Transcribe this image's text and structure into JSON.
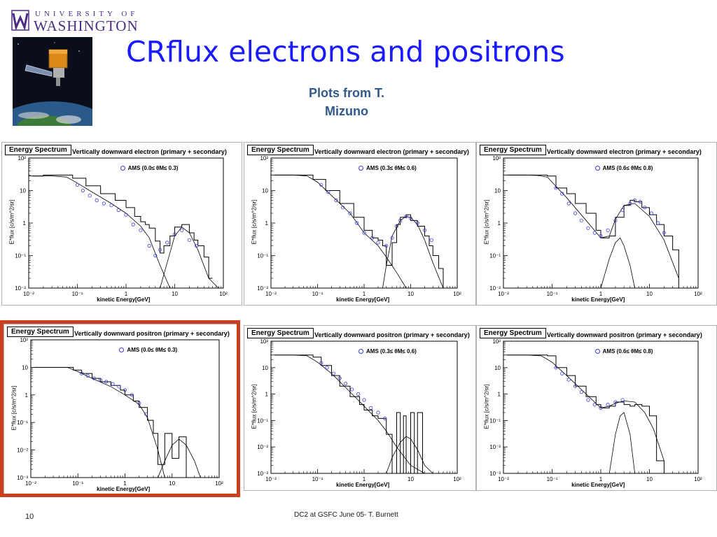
{
  "header": {
    "logo_top": "UNIVERSITY OF",
    "logo_bottom": "WASHINGTON",
    "title": "CRflux electrons and positrons",
    "subtitle_line1": "Plots from T.",
    "subtitle_line2": "Mizuno"
  },
  "footer": {
    "page_number": "10",
    "text": "DC2 at GSFC June 05- T. Burnett"
  },
  "colors": {
    "title": "#1a1aff",
    "subtitle": "#2f5a8a",
    "highlight": "#c8401e",
    "ams_points": "#3b3bd8"
  },
  "icons": {
    "logo": "uw-w-mark",
    "image": "glast-satellite-over-earth"
  },
  "chart_data": [
    {
      "type": "line",
      "label": "Energy Spectrum",
      "title": "Vertically downward electron (primary + secondary)",
      "legend": "AMS (0.0≤ θM≤ 0.3)",
      "xlabel": "kinetic Energy[GeV]",
      "ylabel": "E*flux [c/s/m^2/sr]",
      "xscale": "log",
      "yscale": "log",
      "xlim": [
        0.01,
        100
      ],
      "ylim": [
        0.01,
        100
      ],
      "xticks": [
        "10⁻²",
        "10⁻¹",
        "1",
        "10",
        "10²"
      ],
      "yticks": [
        "10⁻²",
        "10⁻¹",
        "1",
        "10",
        "10²"
      ],
      "series": [
        {
          "role": "histogram",
          "x": [
            0.012,
            0.02,
            0.04,
            0.08,
            0.15,
            0.3,
            0.6,
            1.0,
            1.5,
            2.0,
            2.5,
            3.0,
            4.0,
            5.0,
            6.0,
            8.0,
            10.0,
            14.0,
            20.0,
            25.0,
            30.0,
            40.0,
            50.0
          ],
          "y": [
            28,
            30,
            30,
            24,
            14,
            8,
            5,
            3,
            1.6,
            1.1,
            0.9,
            0.7,
            0.28,
            0.12,
            0.2,
            0.4,
            0.75,
            0.9,
            0.5,
            0.3,
            0.2,
            0.09,
            0.02
          ]
        },
        {
          "role": "primary",
          "x": [
            0.01,
            0.03,
            0.06,
            0.1,
            0.2,
            0.5,
            1,
            2,
            3,
            5,
            8,
            10
          ],
          "y": [
            28,
            28,
            26,
            17,
            9,
            4,
            2,
            0.8,
            0.35,
            0.05,
            0.01,
            0.01
          ]
        },
        {
          "role": "secondary",
          "x": [
            5,
            7,
            10,
            14,
            20,
            30,
            50,
            80
          ],
          "y": [
            0.01,
            0.06,
            0.4,
            0.75,
            0.5,
            0.15,
            0.02,
            0.01
          ]
        },
        {
          "role": "ams",
          "x": [
            0.1,
            0.13,
            0.18,
            0.25,
            0.35,
            0.5,
            0.7,
            1.0,
            1.4,
            2.0,
            3.0,
            4.0,
            5.0,
            7.0,
            10.0,
            14.0,
            20.0,
            28.0
          ],
          "y": [
            15,
            10,
            7,
            5,
            4,
            3.5,
            2.5,
            1.8,
            0.9,
            0.6,
            0.2,
            0.1,
            0.15,
            0.25,
            0.45,
            0.6,
            0.3,
            0.2
          ]
        }
      ]
    },
    {
      "type": "line",
      "label": "Energy Spectrum",
      "title": "Vertically downward electron (primary + secondary)",
      "legend": "AMS (0.3≤ θM≤ 0.6)",
      "xlabel": "kinetic Energy[GeV]",
      "ylabel": "E*flux [c/s/m^2/sr]",
      "xscale": "log",
      "yscale": "log",
      "xlim": [
        0.01,
        100
      ],
      "ylim": [
        0.01,
        100
      ],
      "xticks": [
        "10⁻²",
        "10⁻¹",
        "1",
        "10",
        "10²"
      ],
      "yticks": [
        "10⁻²",
        "10⁻¹",
        "1",
        "10",
        "10²"
      ],
      "series": [
        {
          "role": "histogram",
          "x": [
            0.012,
            0.02,
            0.04,
            0.08,
            0.15,
            0.3,
            0.6,
            1.0,
            1.5,
            2.0,
            2.5,
            3.0,
            4.0,
            5.0,
            6.0,
            8.0,
            10.0,
            14.0,
            20.0,
            25.0,
            30.0,
            40.0,
            50.0
          ],
          "y": [
            30,
            30,
            30,
            22,
            10,
            4,
            1.5,
            0.6,
            0.35,
            0.3,
            0.2,
            0.05,
            0.25,
            0.9,
            1.5,
            1.8,
            1.2,
            0.8,
            0.4,
            0.2,
            0.1,
            0.04,
            0.01
          ]
        },
        {
          "role": "primary",
          "x": [
            0.01,
            0.03,
            0.06,
            0.1,
            0.2,
            0.5,
            1,
            2,
            3,
            5,
            8,
            10
          ],
          "y": [
            30,
            30,
            28,
            18,
            7,
            2,
            0.5,
            0.2,
            0.09,
            0.03,
            0.01,
            0.01
          ]
        },
        {
          "role": "secondary",
          "x": [
            2.5,
            3,
            4,
            6,
            8,
            10,
            14,
            20,
            30,
            50
          ],
          "y": [
            0.01,
            0.05,
            0.4,
            1.2,
            1.6,
            1.5,
            0.9,
            0.3,
            0.06,
            0.01
          ]
        },
        {
          "role": "ams",
          "x": [
            0.12,
            0.17,
            0.25,
            0.35,
            0.5,
            0.7,
            1.0,
            1.5,
            2.0,
            3.0,
            4.0,
            5.0,
            6.0,
            8.0,
            10.0,
            14.0,
            20.0,
            28.0
          ],
          "y": [
            15,
            9,
            5,
            3,
            2,
            1,
            0.5,
            0.35,
            0.25,
            0.2,
            0.35,
            0.8,
            1.2,
            1.6,
            1.4,
            1.0,
            0.6,
            0.3
          ]
        }
      ]
    },
    {
      "type": "line",
      "label": "Energy Spectrum",
      "title": "Vertically downward electron (primary + secondary)",
      "legend": "AMS (0.6≤ θM≤ 0.8)",
      "xlabel": "kinetic Energy[GeV]",
      "ylabel": "E*flux [c/s/m^2/sr]",
      "xscale": "log",
      "yscale": "log",
      "xlim": [
        0.01,
        100
      ],
      "ylim": [
        0.01,
        100
      ],
      "xticks": [
        "10⁻²",
        "10⁻¹",
        "1",
        "10",
        "10²"
      ],
      "yticks": [
        "10⁻²",
        "10⁻¹",
        "1",
        "10",
        "10²"
      ],
      "series": [
        {
          "role": "histogram",
          "x": [
            0.012,
            0.02,
            0.04,
            0.08,
            0.12,
            0.2,
            0.3,
            0.5,
            0.8,
            1.0,
            1.5,
            2.0,
            3.0,
            4.0,
            5.0,
            7.0,
            10.0,
            14.0,
            20.0,
            30.0,
            40.0
          ],
          "y": [
            30,
            30,
            30,
            28,
            12,
            8,
            4,
            2,
            0.6,
            0.35,
            0.4,
            1.5,
            3.5,
            5,
            4.5,
            3,
            1.8,
            0.9,
            0.4,
            0.15,
            0.01
          ]
        },
        {
          "role": "primary",
          "x": [
            0.01,
            0.03,
            0.05,
            0.08,
            0.1,
            0.2,
            0.5,
            1,
            1.5,
            2,
            3,
            5,
            10,
            20,
            40
          ],
          "y": [
            30,
            30,
            29,
            26,
            18,
            6,
            1.2,
            0.35,
            0.4,
            1.3,
            3.5,
            4,
            1.6,
            0.3,
            0.02
          ]
        },
        {
          "role": "secondary",
          "x": [
            1,
            1.5,
            2,
            2.5,
            3,
            4,
            5
          ],
          "y": [
            0.01,
            0.08,
            0.25,
            0.35,
            0.2,
            0.05,
            0.01
          ]
        },
        {
          "role": "ams",
          "x": [
            0.12,
            0.16,
            0.22,
            0.3,
            0.4,
            0.55,
            0.75,
            1.0,
            1.4,
            2.0,
            2.8,
            4.0,
            5.0,
            6.5,
            8.0,
            11.0,
            15.0,
            20.0
          ],
          "y": [
            12,
            8,
            4,
            2,
            1.2,
            0.7,
            0.5,
            0.4,
            0.6,
            1.2,
            2.5,
            4,
            5,
            4.5,
            3,
            2,
            1,
            0.5
          ]
        }
      ]
    },
    {
      "type": "line",
      "label": "Energy Spectrum",
      "title": "Vertically downward positron (primary + secondary)",
      "legend": "AMS (0.0≤ θM≤ 0.3)",
      "xlabel": "kinetic Energy[GeV]",
      "ylabel": "E*flux [c/s/m^2/sr]",
      "xscale": "log",
      "yscale": "log",
      "xlim": [
        0.01,
        100
      ],
      "ylim": [
        0.001,
        100
      ],
      "xticks": [
        "10⁻²",
        "10⁻¹",
        "1",
        "10",
        "10²"
      ],
      "yticks": [
        "10⁻³",
        "10⁻²",
        "10⁻¹",
        "1",
        "10",
        "10²"
      ],
      "series": [
        {
          "role": "histogram",
          "x": [
            0.012,
            0.02,
            0.04,
            0.08,
            0.12,
            0.2,
            0.3,
            0.5,
            0.8,
            1.0,
            1.5,
            2.0,
            3.0,
            4.0,
            5.0,
            7.0,
            10.0,
            14.0,
            20.0
          ],
          "y": [
            10,
            10,
            10,
            8,
            6,
            4,
            3,
            2.2,
            1.5,
            1.0,
            0.6,
            0.35,
            0.12,
            0.04,
            0.003,
            0.04,
            0.005,
            0.03,
            0.001
          ]
        },
        {
          "role": "primary",
          "x": [
            0.01,
            0.03,
            0.06,
            0.1,
            0.2,
            0.5,
            1,
            2,
            3,
            5,
            7
          ],
          "y": [
            10,
            10,
            10,
            7,
            4,
            2,
            1,
            0.45,
            0.15,
            0.01,
            0.001
          ]
        },
        {
          "role": "secondary",
          "x": [
            5,
            7,
            10,
            14,
            20,
            30,
            40
          ],
          "y": [
            0.001,
            0.004,
            0.015,
            0.025,
            0.015,
            0.004,
            0.001
          ]
        },
        {
          "role": "ams",
          "x": [
            0.12,
            0.16,
            0.22,
            0.3,
            0.4,
            0.55,
            0.75,
            1.0,
            1.4,
            2.0,
            2.8
          ],
          "y": [
            6,
            5,
            4,
            3.5,
            3,
            2.5,
            2,
            1.5,
            1.0,
            0.5,
            0.2
          ]
        }
      ]
    },
    {
      "type": "line",
      "label": "Energy Spectrum",
      "title": "Vertically downward positron (primary + secondary)",
      "legend": "AMS (0.3≤ θM≤ 0.6)",
      "xlabel": "kinetic Energy[GeV]",
      "ylabel": "E*flux [c/s/m^2/sr]",
      "xscale": "log",
      "yscale": "log",
      "xlim": [
        0.01,
        100
      ],
      "ylim": [
        0.001,
        100
      ],
      "xticks": [
        "10⁻²",
        "10⁻¹",
        "1",
        "10",
        "10²"
      ],
      "yticks": [
        "10⁻³",
        "10⁻²",
        "10⁻¹",
        "1",
        "10",
        "10²"
      ],
      "series": [
        {
          "role": "histogram",
          "x": [
            0.012,
            0.02,
            0.04,
            0.08,
            0.12,
            0.2,
            0.3,
            0.5,
            0.8,
            1.0,
            1.5,
            2.0,
            3.0,
            4.0,
            5.0,
            6.0,
            7.0,
            8.0,
            10.0,
            12.0,
            14.0,
            18.0
          ],
          "y": [
            30,
            30,
            30,
            25,
            12,
            5,
            2,
            0.8,
            0.4,
            0.25,
            0.15,
            0.12,
            0.03,
            0.001,
            0.2,
            0.001,
            0.15,
            0.001,
            0.2,
            0.001,
            0.2,
            0.001
          ]
        },
        {
          "role": "primary",
          "x": [
            0.01,
            0.03,
            0.06,
            0.1,
            0.2,
            0.5,
            1,
            2,
            3,
            5,
            10,
            20
          ],
          "y": [
            30,
            30,
            28,
            16,
            6,
            1.2,
            0.35,
            0.1,
            0.04,
            0.01,
            0.002,
            0.001
          ]
        },
        {
          "role": "secondary",
          "x": [
            3,
            4,
            6,
            8,
            10,
            14,
            20,
            30
          ],
          "y": [
            0.001,
            0.004,
            0.015,
            0.025,
            0.02,
            0.008,
            0.002,
            0.001
          ]
        },
        {
          "role": "ams",
          "x": [
            0.12,
            0.16,
            0.22,
            0.3,
            0.4,
            0.55,
            0.75,
            1.0,
            1.4,
            2.0,
            2.8
          ],
          "y": [
            15,
            10,
            6,
            4,
            2.5,
            1.5,
            1.0,
            0.6,
            0.3,
            0.2,
            0.12
          ]
        }
      ]
    },
    {
      "type": "line",
      "label": "Energy Spectrum",
      "title": "Vertically downward positron (primary + secondary)",
      "legend": "AMS (0.6≤ θM≤ 0.8)",
      "xlabel": "kinetic Energy[GeV]",
      "ylabel": "E*flux [c/s/m^2/sr]",
      "xscale": "log",
      "yscale": "log",
      "xlim": [
        0.01,
        100
      ],
      "ylim": [
        0.001,
        100
      ],
      "xticks": [
        "10⁻²",
        "10⁻¹",
        "1",
        "10",
        "10²"
      ],
      "yticks": [
        "10⁻³",
        "10⁻²",
        "10⁻¹",
        "1",
        "10",
        "10²"
      ],
      "series": [
        {
          "role": "histogram",
          "x": [
            0.012,
            0.02,
            0.04,
            0.08,
            0.12,
            0.2,
            0.3,
            0.5,
            0.8,
            1.0,
            1.5,
            2.0,
            3.0,
            4.0,
            5.0,
            7.0,
            10.0,
            14.0,
            20.0
          ],
          "y": [
            30,
            30,
            30,
            28,
            10,
            5,
            2,
            0.8,
            0.4,
            0.3,
            0.35,
            0.5,
            0.4,
            0.35,
            0.4,
            0.35,
            0.15,
            0.003,
            0.001
          ]
        },
        {
          "role": "primary",
          "x": [
            0.01,
            0.03,
            0.06,
            0.1,
            0.2,
            0.5,
            1,
            1.5,
            2,
            3,
            5,
            8,
            12,
            20
          ],
          "y": [
            30,
            30,
            28,
            16,
            5,
            1,
            0.3,
            0.35,
            0.45,
            0.55,
            0.5,
            0.2,
            0.05,
            0.003
          ]
        },
        {
          "role": "secondary",
          "x": [
            1.5,
            2,
            2.5,
            3,
            4,
            5
          ],
          "y": [
            0.001,
            0.03,
            0.15,
            0.2,
            0.03,
            0.001
          ]
        },
        {
          "role": "ams",
          "x": [
            0.12,
            0.16,
            0.22,
            0.3,
            0.4,
            0.55,
            0.75,
            1.0,
            1.4,
            2.0,
            2.8
          ],
          "y": [
            10,
            6,
            3.5,
            2,
            1.2,
            0.6,
            0.4,
            0.3,
            0.4,
            0.5,
            0.6
          ]
        }
      ]
    }
  ]
}
